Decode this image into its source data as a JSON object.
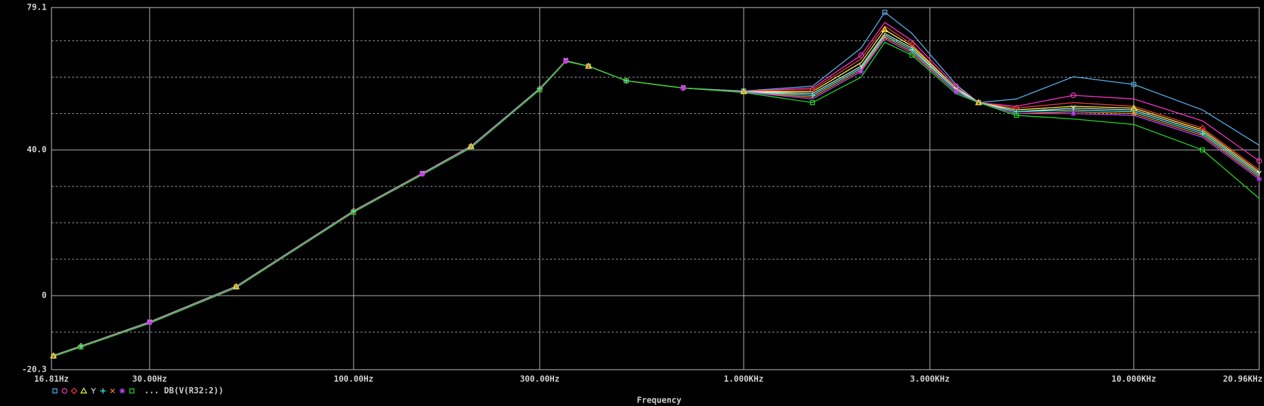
{
  "chart_data": {
    "type": "line",
    "xlabel": "Frequency",
    "legend_label": "... DB(V(R32:2))",
    "log_x": true,
    "grid": true,
    "x": [
      17,
      20,
      30,
      50,
      100,
      150,
      200,
      300,
      350,
      400,
      500,
      700,
      1000,
      1500,
      2000,
      2300,
      2700,
      3500,
      4000,
      5000,
      7000,
      10000,
      15000,
      20960
    ],
    "xlim": [
      16.81,
      20960
    ],
    "xticks": [
      {
        "value": 16.81,
        "label": "16.81Hz"
      },
      {
        "value": 30,
        "label": "30.00Hz"
      },
      {
        "value": 100,
        "label": "100.00Hz"
      },
      {
        "value": 300,
        "label": "300.00Hz"
      },
      {
        "value": 1000,
        "label": "1.000KHz"
      },
      {
        "value": 3000,
        "label": "3.000KHz"
      },
      {
        "value": 10000,
        "label": "10.000KHz"
      },
      {
        "value": 20960,
        "label": "20.96KHz"
      }
    ],
    "ylim": [
      -20.3,
      79.1
    ],
    "yticks": [
      -20.3,
      0,
      {
        "value": 40,
        "label": "40.0"
      },
      79.1
    ],
    "minor_yticks": [
      -10,
      10,
      20,
      30,
      50,
      60,
      70
    ],
    "series": [
      {
        "color": "#5ab4f0",
        "marker": "square",
        "values": [
          -16.6,
          -14.0,
          -7.4,
          2.4,
          23.1,
          33.4,
          40.9,
          56.7,
          64.4,
          63.0,
          59.0,
          57.0,
          56.2,
          57.5,
          68,
          77.8,
          72,
          58,
          53,
          54,
          60.1,
          58,
          51,
          41.3
        ]
      },
      {
        "color": "#ff33cc",
        "marker": "circle",
        "values": [
          -16.5,
          -13.9,
          -7.3,
          2.5,
          23.2,
          33.5,
          41.0,
          56.8,
          64.5,
          63.0,
          59.0,
          57.0,
          56.1,
          57,
          66,
          75,
          70,
          57.5,
          53,
          52,
          55,
          54,
          48,
          37
        ]
      },
      {
        "color": "#ff4040",
        "marker": "diamond",
        "values": [
          -16.4,
          -13.8,
          -7.2,
          2.6,
          23.3,
          33.6,
          41.1,
          56.8,
          64.5,
          63.0,
          59.0,
          57.0,
          56.1,
          56.5,
          65,
          74,
          69,
          57,
          53,
          51.5,
          53,
          52,
          46,
          34.5
        ]
      },
      {
        "color": "#ffff40",
        "marker": "triangle",
        "values": [
          -16.5,
          -13.9,
          -7.3,
          2.5,
          23.2,
          33.5,
          41.0,
          56.8,
          64.5,
          63.0,
          59.0,
          57.0,
          56.0,
          56,
          64,
          73,
          68.5,
          57,
          53,
          51,
          52,
          51.5,
          45.5,
          34
        ]
      },
      {
        "color": "#e0e0e0",
        "marker": "y",
        "values": [
          -16.5,
          -13.9,
          -7.3,
          2.5,
          23.2,
          33.5,
          41.0,
          56.8,
          64.5,
          63.0,
          59.0,
          57.0,
          56.0,
          55.5,
          63,
          72,
          68,
          56.5,
          53,
          50.5,
          51.5,
          51,
          45,
          33.5
        ]
      },
      {
        "color": "#40ffff",
        "marker": "plus",
        "values": [
          -16.4,
          -13.8,
          -7.2,
          2.6,
          23.3,
          33.6,
          41.1,
          56.9,
          64.5,
          63.0,
          59.0,
          57.0,
          56.0,
          55,
          62.5,
          71.5,
          67.5,
          56.5,
          53,
          50.5,
          51,
          50.5,
          44.5,
          33
        ]
      },
      {
        "color": "#ff9020",
        "marker": "x",
        "values": [
          -16.5,
          -13.9,
          -7.3,
          2.5,
          23.2,
          33.5,
          41.0,
          56.8,
          64.5,
          63.0,
          59.0,
          57.0,
          55.9,
          54.5,
          62,
          71,
          67,
          56,
          53,
          50,
          50.5,
          50,
          44,
          32.5
        ]
      },
      {
        "color": "#c040ff",
        "marker": "star",
        "values": [
          -16.6,
          -14.0,
          -7.4,
          2.4,
          23.1,
          33.4,
          40.9,
          56.7,
          64.4,
          63.0,
          59.0,
          57.0,
          55.9,
          54,
          61.5,
          70.5,
          66.5,
          56,
          53,
          50,
          50,
          49.5,
          43.5,
          32
        ]
      },
      {
        "color": "#20e020",
        "marker": "square",
        "values": [
          -16.7,
          -14.1,
          -7.6,
          2.2,
          22.9,
          33.2,
          40.6,
          56.5,
          64.3,
          63.0,
          59.0,
          57.0,
          55.8,
          53,
          60,
          69.6,
          66,
          55.5,
          53,
          49.5,
          48.5,
          47,
          40,
          26.7
        ]
      }
    ]
  }
}
